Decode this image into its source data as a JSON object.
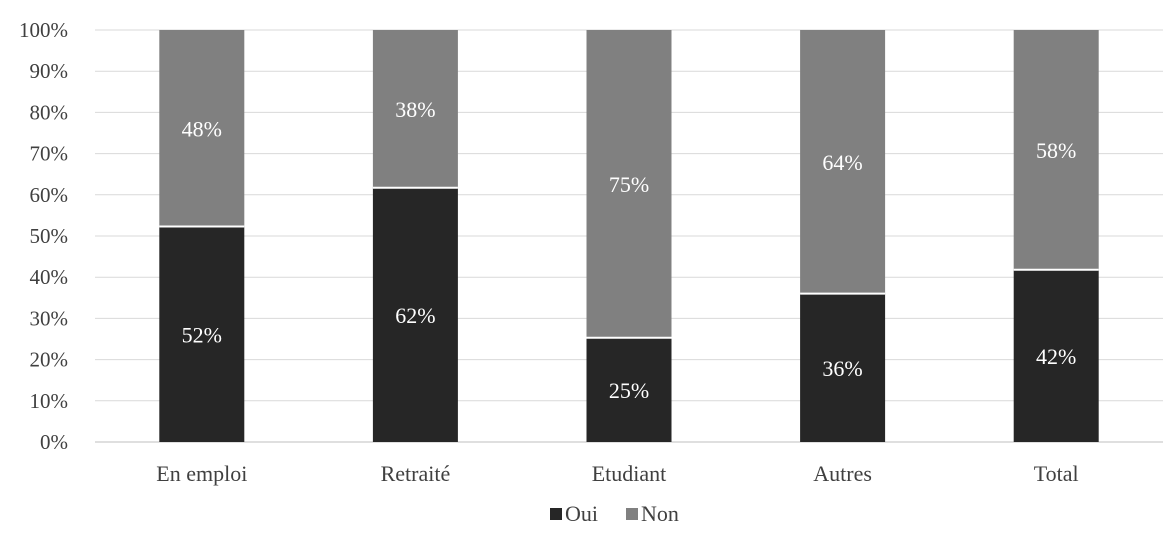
{
  "chart_data": {
    "type": "bar",
    "stacked": true,
    "percent_stacked": true,
    "categories": [
      "En emploi",
      "Retraité",
      "Etudiant",
      "Autres",
      "Total"
    ],
    "series": [
      {
        "name": "Oui",
        "values": [
          52,
          62,
          25,
          36,
          42
        ],
        "labels": [
          "52%",
          "62%",
          "25%",
          "36%",
          "42%"
        ],
        "color": "#262626"
      },
      {
        "name": "Non",
        "values": [
          48,
          38,
          75,
          64,
          58
        ],
        "labels": [
          "48%",
          "38%",
          "75%",
          "64%",
          "58%"
        ],
        "color": "#808080"
      }
    ],
    "plotted_oui_fraction": [
      0.523,
      0.617,
      0.253,
      0.36,
      0.418
    ],
    "y_ticks": [
      "0%",
      "10%",
      "20%",
      "30%",
      "40%",
      "50%",
      "60%",
      "70%",
      "80%",
      "90%",
      "100%"
    ],
    "ylim": [
      0,
      100
    ],
    "title": "",
    "xlabel": "",
    "ylabel": "",
    "grid": true,
    "legend_position": "bottom",
    "label_color": "#ffffff",
    "grid_color": "#d9d9d9",
    "tick_label_color": "#404040"
  }
}
